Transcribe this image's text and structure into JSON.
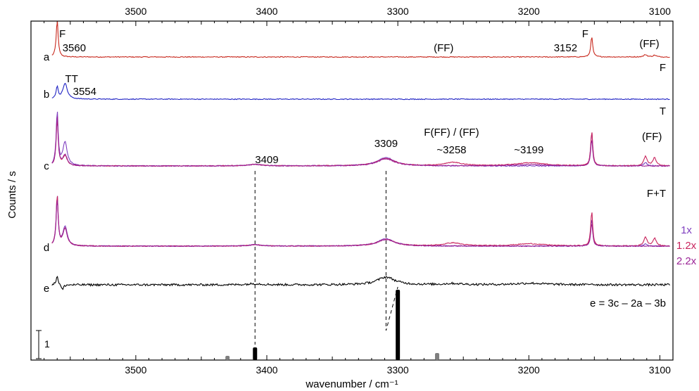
{
  "chart_data": {
    "type": "line",
    "title": "",
    "xlabel": "wavenumber / cm⁻¹",
    "ylabel": "Counts / s",
    "xlim": [
      3580,
      3090
    ],
    "x_reversed": true,
    "x_ticks": [
      3500,
      3400,
      3300,
      3200,
      3100
    ],
    "x_tick_labels": [
      "3500",
      "3400",
      "3300",
      "3200",
      "3100"
    ],
    "grid": false,
    "scale_bar_label": "1",
    "traces": [
      {
        "id": "a",
        "label": "a",
        "color": "#c8291e",
        "right_label": "F",
        "peaks": [
          {
            "x": 3560,
            "h": 9.5,
            "w": 0.9
          },
          {
            "x": 3152,
            "h": 5.2,
            "w": 0.9
          },
          {
            "x": 3111,
            "h": 0.6,
            "w": 1.5
          },
          {
            "x": 3104,
            "h": 0.45,
            "w": 1.5
          }
        ]
      },
      {
        "id": "b",
        "label": "b",
        "color": "#2124c4",
        "right_label": "T",
        "peaks": [
          {
            "x": 3560,
            "h": 3.2,
            "w": 0.9
          },
          {
            "x": 3554,
            "h": 4.1,
            "w": 2.0
          }
        ]
      },
      {
        "id": "c",
        "label": "c",
        "right_label": "F+T",
        "series": [
          {
            "color": "#7f3fbf",
            "peaks": [
              {
                "x": 3560,
                "h": 14,
                "w": 0.9
              },
              {
                "x": 3554,
                "h": 6,
                "w": 2.0
              },
              {
                "x": 3409,
                "h": 0.4,
                "w": 6
              },
              {
                "x": 3309,
                "h": 2.2,
                "w": 8
              },
              {
                "x": 3152,
                "h": 9,
                "w": 0.9
              },
              {
                "x": 3111,
                "h": 0.9,
                "w": 1.5
              }
            ]
          },
          {
            "color": "#c8235c",
            "peaks": [
              {
                "x": 3560,
                "h": 12,
                "w": 0.9
              },
              {
                "x": 3554,
                "h": 2.5,
                "w": 2.0
              },
              {
                "x": 3409,
                "h": 0.4,
                "w": 6
              },
              {
                "x": 3309,
                "h": 1.9,
                "w": 8
              },
              {
                "x": 3258,
                "h": 0.9,
                "w": 8
              },
              {
                "x": 3199,
                "h": 0.8,
                "w": 14
              },
              {
                "x": 3152,
                "h": 9,
                "w": 0.9
              },
              {
                "x": 3111,
                "h": 2.4,
                "w": 1.5
              },
              {
                "x": 3104,
                "h": 2.1,
                "w": 1.5
              }
            ]
          },
          {
            "color": "#9b2496",
            "peaks": [
              {
                "x": 3560,
                "h": 13,
                "w": 0.9
              },
              {
                "x": 3554,
                "h": 2.8,
                "w": 2.0
              },
              {
                "x": 3409,
                "h": 0.4,
                "w": 6
              },
              {
                "x": 3309,
                "h": 1.8,
                "w": 8
              },
              {
                "x": 3199,
                "h": 0.4,
                "w": 14
              },
              {
                "x": 3152,
                "h": 7,
                "w": 0.9
              }
            ]
          }
        ]
      },
      {
        "id": "d",
        "label": "d",
        "right_label": "",
        "series": [
          {
            "name": "1x",
            "color": "#7f3fbf",
            "peaks": [
              {
                "x": 3560,
                "h": 13,
                "w": 0.9
              },
              {
                "x": 3554,
                "h": 5,
                "w": 2.0
              },
              {
                "x": 3409,
                "h": 0.35,
                "w": 6
              },
              {
                "x": 3309,
                "h": 1.9,
                "w": 8
              },
              {
                "x": 3152,
                "h": 7,
                "w": 0.9
              },
              {
                "x": 3111,
                "h": 0.6,
                "w": 1.5
              }
            ]
          },
          {
            "name": "1.2x",
            "color": "#c8235c",
            "peaks": [
              {
                "x": 3560,
                "h": 13,
                "w": 0.9
              },
              {
                "x": 3554,
                "h": 4.5,
                "w": 2.0
              },
              {
                "x": 3409,
                "h": 0.35,
                "w": 6
              },
              {
                "x": 3309,
                "h": 1.7,
                "w": 8
              },
              {
                "x": 3258,
                "h": 0.8,
                "w": 8
              },
              {
                "x": 3199,
                "h": 0.6,
                "w": 14
              },
              {
                "x": 3152,
                "h": 9,
                "w": 0.9
              },
              {
                "x": 3111,
                "h": 2.3,
                "w": 1.5
              },
              {
                "x": 3104,
                "h": 2.0,
                "w": 1.5
              }
            ]
          },
          {
            "name": "2.2x",
            "color": "#9b2496",
            "peaks": [
              {
                "x": 3560,
                "h": 12,
                "w": 0.9
              },
              {
                "x": 3554,
                "h": 4.5,
                "w": 2.0
              },
              {
                "x": 3409,
                "h": 0.35,
                "w": 6
              },
              {
                "x": 3309,
                "h": 1.7,
                "w": 8
              },
              {
                "x": 3152,
                "h": 6,
                "w": 0.9
              }
            ]
          }
        ]
      },
      {
        "id": "e",
        "label": "e",
        "color": "#000000",
        "right_label": "e = 3c – 2a – 3b",
        "peaks": [
          {
            "x": 3560,
            "h": 2.4,
            "w": 0.9
          },
          {
            "x": 3556,
            "h": -1.4,
            "w": 1.0
          },
          {
            "x": 3409,
            "h": 0.3,
            "w": 6
          },
          {
            "x": 3309,
            "h": 2.0,
            "w": 8
          },
          {
            "x": 3258,
            "h": 0.3,
            "w": 8
          },
          {
            "x": 3199,
            "h": 0.4,
            "w": 14
          },
          {
            "x": 3152,
            "h": 0.3,
            "w": 0.9
          }
        ]
      }
    ],
    "stick_spectrum": [
      {
        "x": 3409,
        "intensity": 0.18,
        "color": "#000000"
      },
      {
        "x": 3300,
        "intensity": 1.0,
        "color": "#000000"
      },
      {
        "x": 3430,
        "intensity": 0.05,
        "color": "#7f7f7f"
      },
      {
        "x": 3270,
        "intensity": 0.1,
        "color": "#7f7f7f"
      }
    ],
    "annotations": [
      {
        "text": "F",
        "x": 3556,
        "trace": "a"
      },
      {
        "text": "3560",
        "x": 3547,
        "trace": "a"
      },
      {
        "text": "(FF)",
        "x": 3265,
        "trace": "a"
      },
      {
        "text": "3152",
        "x": 3172,
        "trace": "a"
      },
      {
        "text": "F",
        "x": 3157,
        "trace": "a"
      },
      {
        "text": "(FF)",
        "x": 3108,
        "trace": "a"
      },
      {
        "text": "TT",
        "x": 3549,
        "trace": "b"
      },
      {
        "text": "3554",
        "x": 3539,
        "trace": "b"
      },
      {
        "text": "3409",
        "x": 3400,
        "trace": "c"
      },
      {
        "text": "3309",
        "x": 3309,
        "trace": "c"
      },
      {
        "text": "F(FF) / (FF)",
        "x": 3259,
        "trace": "c"
      },
      {
        "text": "~3258",
        "x": 3259,
        "trace": "c"
      },
      {
        "text": "~3199",
        "x": 3200,
        "trace": "c"
      },
      {
        "text": "(FF)",
        "x": 3106,
        "trace": "c"
      }
    ],
    "correlation_lines": [
      {
        "from_x": 3409,
        "to_x": 3409,
        "stick_x": 3409
      },
      {
        "from_x": 3309,
        "to_x": 3309,
        "stick_x": 3300
      }
    ]
  }
}
